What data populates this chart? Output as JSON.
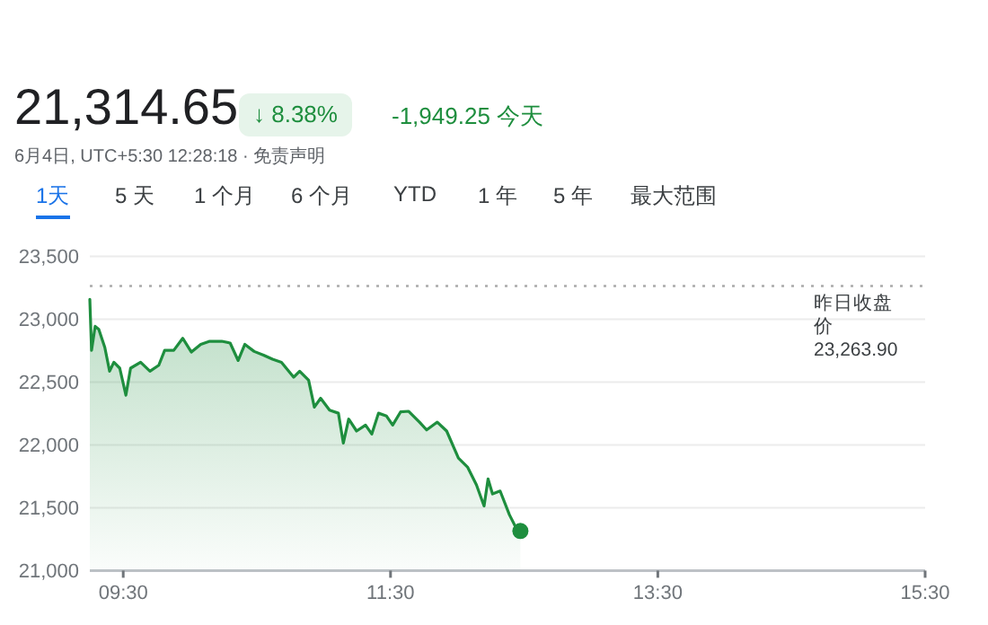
{
  "chart_data": {
    "type": "area",
    "color": "#1e8e3e",
    "annotations": [
      "21,314.65",
      "↓ 8.38%",
      "-1,949.25 今天",
      "6月4日, UTC+5:30 12:28:18 · 免责声明",
      "1天",
      "5 天",
      "1 个月",
      "6 个月",
      "YTD",
      "1 年",
      "5 年",
      "最大范围"
    ],
    "series": [
      {
        "color": "#1e8e3e",
        "x": [
          9.25,
          9.263,
          9.29,
          9.317,
          9.362,
          9.398,
          9.43,
          9.474,
          9.52,
          9.555,
          9.63,
          9.7,
          9.766,
          9.81,
          9.878,
          9.945,
          10.01,
          10.08,
          10.147,
          10.237,
          10.3,
          10.36,
          10.41,
          10.48,
          10.55,
          10.617,
          10.684,
          10.775,
          10.82,
          10.887,
          10.93,
          10.977,
          11.044,
          11.11,
          11.147,
          11.187,
          11.246,
          11.313,
          11.36,
          11.41,
          11.47,
          11.516,
          11.575,
          11.636,
          11.717,
          11.77,
          11.85,
          11.92,
          12.008,
          12.076,
          12.143,
          12.2,
          12.23,
          12.263,
          12.32,
          12.39,
          12.44,
          12.4717
        ],
        "values": [
          23157,
          22752,
          22943,
          22919,
          22776,
          22586,
          22657,
          22610,
          22395,
          22610,
          22657,
          22586,
          22633,
          22752,
          22752,
          22848,
          22738,
          22800,
          22824,
          22824,
          22810,
          22671,
          22800,
          22743,
          22714,
          22681,
          22657,
          22538,
          22586,
          22514,
          22300,
          22371,
          22276,
          22252,
          22014,
          22205,
          22110,
          22157,
          22086,
          22252,
          22229,
          22157,
          22262,
          22267,
          22181,
          22119,
          22181,
          22110,
          21895,
          21824,
          21681,
          21514,
          21729,
          21610,
          21633,
          21443,
          21338,
          21314.65
        ]
      },
      {
        "type": "scatter",
        "color": "#1e8e3e",
        "marker": "circle",
        "x": [
          12.4717
        ],
        "values": [
          21314.65
        ]
      }
    ],
    "xlim": [
      9.25,
      15.5
    ],
    "xticks": [
      {
        "value": 9.5,
        "label": "09:30"
      },
      {
        "value": 11.5,
        "label": "11:30"
      },
      {
        "value": 13.5,
        "label": "13:30"
      },
      {
        "value": 15.5,
        "label": "15:30"
      }
    ],
    "ylim": [
      21000,
      23500
    ],
    "yticks": [
      {
        "value": 21000,
        "label": "21,000"
      },
      {
        "value": 21500,
        "label": "21,500"
      },
      {
        "value": 22000,
        "label": "22,000"
      },
      {
        "value": 22500,
        "label": "22,500"
      },
      {
        "value": 23000,
        "label": "23,000"
      },
      {
        "value": 23500,
        "label": "23,500"
      }
    ],
    "grid": "y",
    "ref_lines": [
      {
        "axis": "y",
        "value": 23263.9,
        "label": "昨日收盘价 23,263.90",
        "line_style": "dotted",
        "color": "#aaaaaa"
      }
    ]
  }
}
